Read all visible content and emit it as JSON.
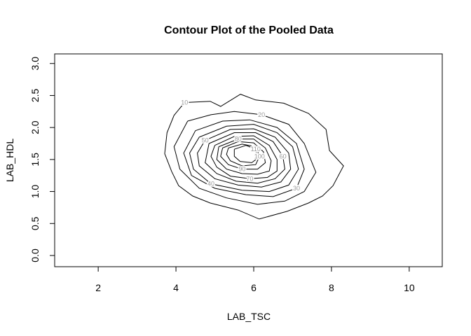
{
  "chart_data": {
    "type": "contour",
    "title": "Contour Plot of the Pooled Data",
    "x_label": "LAB_TSC",
    "y_label": "LAB_HDL",
    "xlim": [
      0.88,
      10.85
    ],
    "ylim": [
      -0.175,
      3.15
    ],
    "xticks": [
      2,
      4,
      6,
      8,
      10
    ],
    "yticks": [
      {
        "value": 0,
        "label": "0.0"
      },
      0.5,
      {
        "value": 1,
        "label": "1.0"
      },
      1.5,
      {
        "value": 2,
        "label": "2.0"
      },
      2.5,
      {
        "value": 3,
        "label": "3.0"
      }
    ],
    "color": "#000000",
    "label_color": "#999999",
    "contours": [
      {
        "level": 10,
        "x": [
          4.22,
          4.88,
          5.15,
          5.66,
          6.05,
          6.77,
          7.41,
          7.86,
          7.95,
          8.31,
          8.04,
          7.77,
          7.41,
          6.86,
          6.14,
          5.6,
          4.88,
          4.43,
          4.07,
          3.89,
          3.71,
          3.77,
          3.95,
          4.22
        ],
        "y": [
          2.39,
          2.41,
          2.33,
          2.52,
          2.43,
          2.38,
          2.22,
          1.97,
          1.64,
          1.4,
          1.09,
          0.93,
          0.82,
          0.69,
          0.57,
          0.71,
          0.82,
          0.93,
          1.09,
          1.31,
          1.59,
          1.92,
          2.19,
          2.39
        ]
      },
      {
        "level": 20,
        "x": [
          4.3,
          4.9,
          5.5,
          6.2,
          6.9,
          7.3,
          7.6,
          7.3,
          6.8,
          6.1,
          5.3,
          4.6,
          4.1,
          3.95,
          4.3
        ],
        "y": [
          2.1,
          2.2,
          2.25,
          2.2,
          2.05,
          1.75,
          1.3,
          1.0,
          0.85,
          0.8,
          0.9,
          1.05,
          1.35,
          1.7,
          2.1
        ]
      },
      {
        "level": 30,
        "x": [
          4.5,
          5.2,
          5.9,
          6.6,
          7.1,
          7.3,
          7.1,
          6.5,
          5.8,
          5.0,
          4.4,
          4.2,
          4.5
        ],
        "y": [
          1.95,
          2.1,
          2.12,
          2.0,
          1.75,
          1.35,
          1.05,
          0.92,
          0.95,
          1.05,
          1.25,
          1.6,
          1.95
        ]
      },
      {
        "level": 40,
        "x": [
          4.6,
          5.3,
          6.0,
          6.6,
          7.0,
          7.15,
          6.9,
          6.4,
          5.7,
          4.9,
          4.45,
          4.35,
          4.6
        ],
        "y": [
          1.85,
          2.02,
          2.05,
          1.92,
          1.7,
          1.35,
          1.1,
          1.0,
          1.02,
          1.12,
          1.35,
          1.6,
          1.85
        ]
      },
      {
        "level": 50,
        "x": [
          4.75,
          5.4,
          6.0,
          6.55,
          6.9,
          6.95,
          6.7,
          6.2,
          5.6,
          5.0,
          4.6,
          4.55,
          4.75
        ],
        "y": [
          1.8,
          1.97,
          1.98,
          1.85,
          1.6,
          1.35,
          1.15,
          1.07,
          1.1,
          1.2,
          1.4,
          1.6,
          1.8
        ]
      },
      {
        "level": 60,
        "x": [
          4.85,
          5.5,
          6.05,
          6.5,
          6.75,
          6.8,
          6.55,
          6.1,
          5.55,
          5.05,
          4.75,
          4.85
        ],
        "y": [
          1.75,
          1.92,
          1.92,
          1.78,
          1.55,
          1.35,
          1.2,
          1.13,
          1.16,
          1.28,
          1.45,
          1.75
        ]
      },
      {
        "level": 70,
        "x": [
          5.0,
          5.5,
          6.0,
          6.4,
          6.6,
          6.6,
          6.35,
          5.9,
          5.4,
          5.05,
          4.9,
          5.0
        ],
        "y": [
          1.72,
          1.86,
          1.87,
          1.72,
          1.5,
          1.32,
          1.22,
          1.2,
          1.24,
          1.38,
          1.55,
          1.72
        ]
      },
      {
        "level": 80,
        "x": [
          5.1,
          5.6,
          6.0,
          6.3,
          6.45,
          6.4,
          6.1,
          5.7,
          5.3,
          5.05,
          5.1
        ],
        "y": [
          1.7,
          1.82,
          1.82,
          1.68,
          1.48,
          1.32,
          1.27,
          1.28,
          1.35,
          1.5,
          1.7
        ]
      },
      {
        "level": 90,
        "x": [
          5.2,
          5.6,
          6.0,
          6.25,
          6.3,
          6.1,
          5.7,
          5.35,
          5.15,
          5.2
        ],
        "y": [
          1.68,
          1.78,
          1.76,
          1.62,
          1.45,
          1.35,
          1.35,
          1.42,
          1.55,
          1.68
        ]
      },
      {
        "level": 100,
        "x": [
          5.35,
          5.7,
          6.05,
          6.15,
          6.05,
          5.7,
          5.4,
          5.3,
          5.35
        ],
        "y": [
          1.68,
          1.74,
          1.7,
          1.55,
          1.42,
          1.4,
          1.48,
          1.58,
          1.68
        ]
      },
      {
        "level": 110,
        "x": [
          5.5,
          5.8,
          6.05,
          6.1,
          5.95,
          5.65,
          5.5,
          5.5
        ],
        "y": [
          1.66,
          1.72,
          1.66,
          1.52,
          1.45,
          1.47,
          1.55,
          1.66
        ]
      }
    ]
  }
}
